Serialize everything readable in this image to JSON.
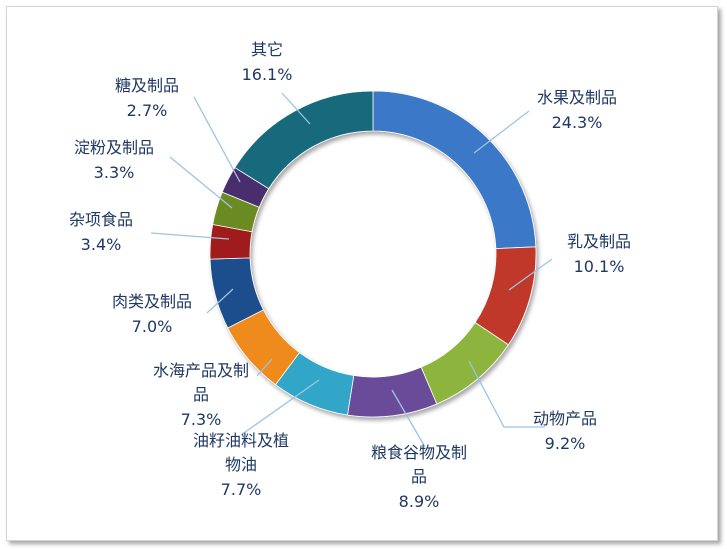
{
  "chart_data": {
    "type": "pie",
    "variant": "doughnut",
    "title": "",
    "start_angle_deg": 0,
    "direction": "clockwise",
    "slices": [
      {
        "name": "水果及制品",
        "value": 24.3,
        "label": "24.3%",
        "color": "#3a78c8"
      },
      {
        "name": "乳及制品",
        "value": 10.1,
        "label": "10.1%",
        "color": "#c0392b"
      },
      {
        "name": "动物产品",
        "value": 9.2,
        "label": "9.2%",
        "color": "#8db43e"
      },
      {
        "name": "粮食谷物及制品",
        "value": 8.9,
        "label": "8.9%",
        "color": "#6b4c9a"
      },
      {
        "name": "油籽油料及植物油",
        "value": 7.7,
        "label": "7.7%",
        "color": "#31a6c8"
      },
      {
        "name": "水海产品及制品",
        "value": 7.3,
        "label": "7.3%",
        "color": "#ef8a1e"
      },
      {
        "name": "肉类及制品",
        "value": 7.0,
        "label": "7.0%",
        "color": "#1f4e8c"
      },
      {
        "name": "杂项食品",
        "value": 3.4,
        "label": "3.4%",
        "color": "#a01f1f"
      },
      {
        "name": "淀粉及制品",
        "value": 3.3,
        "label": "3.3%",
        "color": "#6b8a22"
      },
      {
        "name": "糖及制品",
        "value": 2.7,
        "label": "2.7%",
        "color": "#4a2f6e"
      },
      {
        "name": "其它",
        "value": 16.1,
        "label": "16.1%",
        "color": "#176b7c"
      }
    ],
    "label_color": "#1f3864",
    "leader_line_color": "#9dc3e6"
  }
}
